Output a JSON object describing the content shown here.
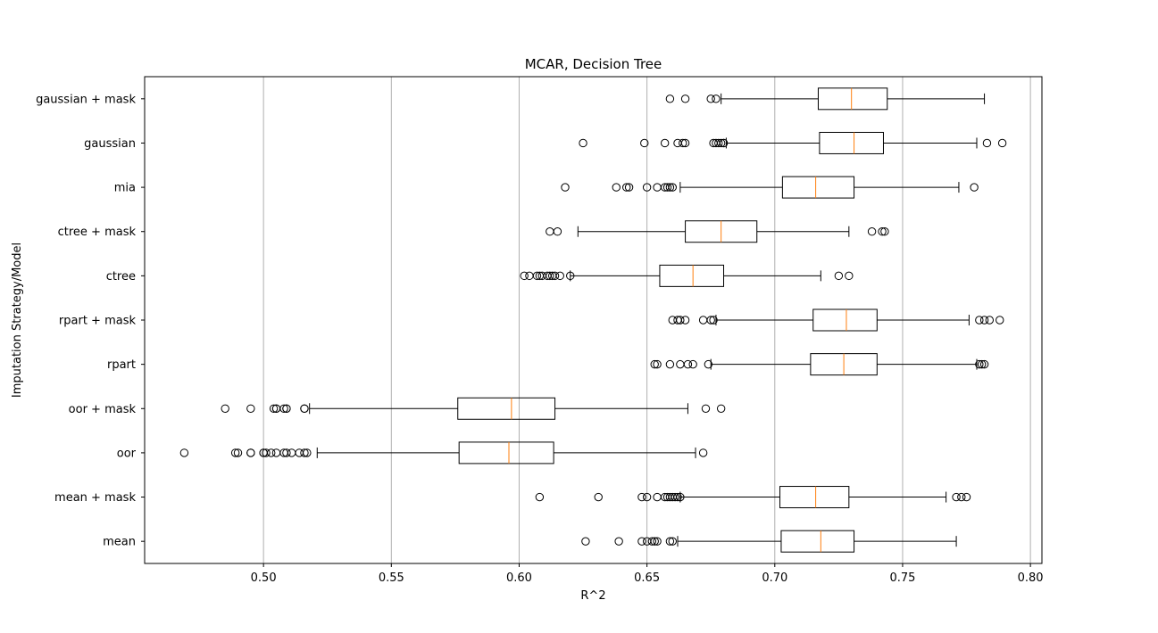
{
  "chart_data": {
    "type": "boxplot",
    "orientation": "horizontal",
    "title": "MCAR, Decision Tree",
    "xlabel": "R^2",
    "ylabel": "Imputation Strategy/Model",
    "xlim": [
      0.4535,
      0.8045
    ],
    "xticks": [
      0.5,
      0.55,
      0.6,
      0.65,
      0.7,
      0.75,
      0.8
    ],
    "xtick_labels": [
      "0.50",
      "0.55",
      "0.60",
      "0.65",
      "0.70",
      "0.75",
      "0.80"
    ],
    "grid": "x",
    "colors": {
      "box": "#000000",
      "median": "#ff7f0e",
      "grid": "#b0b0b0"
    },
    "categories": [
      "gaussian + mask",
      "gaussian",
      "mia",
      "ctree + mask",
      "ctree",
      "rpart + mask",
      "rpart",
      "oor + mask",
      "oor",
      "mean + mask",
      "mean"
    ],
    "series": [
      {
        "category": "gaussian + mask",
        "whisker_low": 0.679,
        "q1": 0.717,
        "median": 0.73,
        "q3": 0.744,
        "whisker_high": 0.782,
        "outliers": [
          0.659,
          0.665,
          0.675,
          0.677
        ]
      },
      {
        "category": "gaussian",
        "whisker_low": 0.681,
        "q1": 0.7175,
        "median": 0.731,
        "q3": 0.7425,
        "whisker_high": 0.779,
        "outliers": [
          0.625,
          0.649,
          0.657,
          0.662,
          0.664,
          0.665,
          0.676,
          0.677,
          0.678,
          0.679,
          0.68,
          0.68,
          0.783,
          0.789
        ]
      },
      {
        "category": "mia",
        "whisker_low": 0.663,
        "q1": 0.703,
        "median": 0.716,
        "q3": 0.731,
        "whisker_high": 0.772,
        "outliers": [
          0.618,
          0.638,
          0.642,
          0.643,
          0.65,
          0.654,
          0.657,
          0.658,
          0.659,
          0.66,
          0.778
        ]
      },
      {
        "category": "ctree + mask",
        "whisker_low": 0.623,
        "q1": 0.665,
        "median": 0.679,
        "q3": 0.693,
        "whisker_high": 0.729,
        "outliers": [
          0.612,
          0.615,
          0.738,
          0.742,
          0.743
        ]
      },
      {
        "category": "ctree",
        "whisker_low": 0.62,
        "q1": 0.655,
        "median": 0.668,
        "q3": 0.68,
        "whisker_high": 0.718,
        "outliers": [
          0.602,
          0.604,
          0.607,
          0.608,
          0.609,
          0.611,
          0.612,
          0.613,
          0.614,
          0.616,
          0.62,
          0.725,
          0.729
        ]
      },
      {
        "category": "rpart + mask",
        "whisker_low": 0.677,
        "q1": 0.715,
        "median": 0.728,
        "q3": 0.74,
        "whisker_high": 0.776,
        "outliers": [
          0.66,
          0.662,
          0.663,
          0.665,
          0.672,
          0.675,
          0.676,
          0.78,
          0.782,
          0.784,
          0.788
        ]
      },
      {
        "category": "rpart",
        "whisker_low": 0.675,
        "q1": 0.714,
        "median": 0.727,
        "q3": 0.74,
        "whisker_high": 0.779,
        "outliers": [
          0.653,
          0.654,
          0.659,
          0.663,
          0.666,
          0.668,
          0.674,
          0.78,
          0.781,
          0.782
        ]
      },
      {
        "category": "oor + mask",
        "whisker_low": 0.518,
        "q1": 0.576,
        "median": 0.597,
        "q3": 0.614,
        "whisker_high": 0.666,
        "outliers": [
          0.485,
          0.495,
          0.504,
          0.505,
          0.505,
          0.508,
          0.509,
          0.509,
          0.516,
          0.516,
          0.673,
          0.679
        ]
      },
      {
        "category": "oor",
        "whisker_low": 0.521,
        "q1": 0.5765,
        "median": 0.596,
        "q3": 0.6135,
        "whisker_high": 0.669,
        "outliers": [
          0.469,
          0.489,
          0.49,
          0.495,
          0.495,
          0.5,
          0.5,
          0.501,
          0.503,
          0.505,
          0.508,
          0.509,
          0.511,
          0.514,
          0.516,
          0.517,
          0.672
        ]
      },
      {
        "category": "mean + mask",
        "whisker_low": 0.663,
        "q1": 0.702,
        "median": 0.716,
        "q3": 0.729,
        "whisker_high": 0.767,
        "outliers": [
          0.608,
          0.631,
          0.648,
          0.65,
          0.654,
          0.657,
          0.658,
          0.659,
          0.66,
          0.661,
          0.662,
          0.663,
          0.771,
          0.773,
          0.775
        ]
      },
      {
        "category": "mean",
        "whisker_low": 0.662,
        "q1": 0.7025,
        "median": 0.718,
        "q3": 0.731,
        "whisker_high": 0.771,
        "outliers": [
          0.626,
          0.639,
          0.648,
          0.65,
          0.652,
          0.653,
          0.654,
          0.659,
          0.66
        ]
      }
    ]
  }
}
